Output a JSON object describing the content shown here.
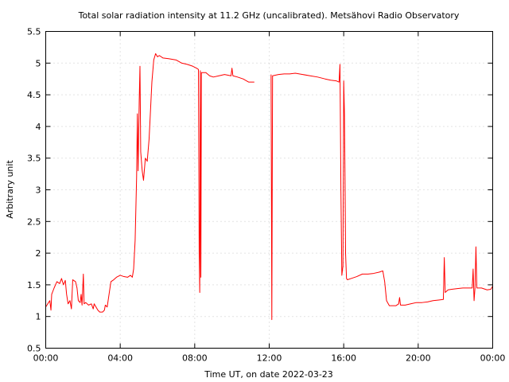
{
  "chart_data": {
    "type": "line",
    "title": "Total solar radiation intensity at 11.2 GHz (uncalibrated). Metsähovi Radio Observatory",
    "xlabel": "Time UT, on date 2022-03-23",
    "ylabel": "Arbitrary unit",
    "xlim": [
      0,
      24
    ],
    "ylim": [
      0.5,
      5.5
    ],
    "x_ticks": [
      {
        "value": 0,
        "label": "00:00"
      },
      {
        "value": 4,
        "label": "04:00"
      },
      {
        "value": 8,
        "label": "08:00"
      },
      {
        "value": 12,
        "label": "12:00"
      },
      {
        "value": 16,
        "label": "16:00"
      },
      {
        "value": 20,
        "label": "20:00"
      },
      {
        "value": 24,
        "label": "00:00"
      }
    ],
    "y_ticks": [
      {
        "value": 0.5,
        "label": "0.5"
      },
      {
        "value": 1,
        "label": "1"
      },
      {
        "value": 1.5,
        "label": "1.5"
      },
      {
        "value": 2,
        "label": "2"
      },
      {
        "value": 2.5,
        "label": "2.5"
      },
      {
        "value": 3,
        "label": "3"
      },
      {
        "value": 3.5,
        "label": "3.5"
      },
      {
        "value": 4,
        "label": "4"
      },
      {
        "value": 4.5,
        "label": "4.5"
      },
      {
        "value": 5,
        "label": "5"
      },
      {
        "value": 5.5,
        "label": "5.5"
      }
    ],
    "grid": true,
    "series_color": "#ff0000",
    "series": [
      {
        "segments": [
          [
            [
              0.0,
              1.15
            ],
            [
              0.15,
              1.22
            ],
            [
              0.22,
              1.25
            ],
            [
              0.28,
              1.1
            ],
            [
              0.32,
              1.35
            ],
            [
              0.45,
              1.45
            ],
            [
              0.6,
              1.55
            ],
            [
              0.75,
              1.52
            ],
            [
              0.85,
              1.6
            ],
            [
              0.95,
              1.5
            ],
            [
              1.05,
              1.57
            ],
            [
              1.12,
              1.35
            ],
            [
              1.2,
              1.2
            ],
            [
              1.3,
              1.25
            ],
            [
              1.38,
              1.12
            ],
            [
              1.45,
              1.58
            ],
            [
              1.6,
              1.55
            ],
            [
              1.68,
              1.45
            ],
            [
              1.75,
              1.25
            ],
            [
              1.85,
              1.22
            ],
            [
              1.9,
              1.35
            ],
            [
              1.95,
              1.18
            ],
            [
              2.02,
              1.67
            ],
            [
              2.06,
              1.2
            ],
            [
              2.15,
              1.22
            ],
            [
              2.3,
              1.18
            ],
            [
              2.45,
              1.2
            ],
            [
              2.55,
              1.12
            ],
            [
              2.6,
              1.2
            ],
            [
              2.7,
              1.15
            ],
            [
              2.8,
              1.1
            ],
            [
              2.9,
              1.07
            ],
            [
              3.05,
              1.07
            ],
            [
              3.15,
              1.1
            ],
            [
              3.2,
              1.18
            ],
            [
              3.3,
              1.15
            ],
            [
              3.4,
              1.35
            ],
            [
              3.5,
              1.55
            ],
            [
              3.65,
              1.58
            ],
            [
              3.8,
              1.62
            ],
            [
              4.0,
              1.65
            ],
            [
              4.2,
              1.63
            ],
            [
              4.4,
              1.62
            ],
            [
              4.55,
              1.65
            ],
            [
              4.65,
              1.62
            ],
            [
              4.72,
              1.75
            ],
            [
              4.8,
              2.2
            ],
            [
              4.88,
              3.2
            ],
            [
              4.92,
              4.2
            ],
            [
              4.96,
              3.3
            ],
            [
              5.02,
              4.4
            ],
            [
              5.06,
              4.95
            ],
            [
              5.1,
              3.6
            ],
            [
              5.18,
              3.3
            ],
            [
              5.25,
              3.15
            ],
            [
              5.35,
              3.5
            ],
            [
              5.45,
              3.45
            ],
            [
              5.55,
              3.8
            ],
            [
              5.7,
              4.7
            ],
            [
              5.8,
              5.05
            ],
            [
              5.9,
              5.15
            ],
            [
              6.0,
              5.1
            ],
            [
              6.1,
              5.12
            ],
            [
              6.3,
              5.08
            ],
            [
              6.6,
              5.07
            ],
            [
              7.0,
              5.05
            ],
            [
              7.3,
              5.0
            ],
            [
              7.6,
              4.98
            ],
            [
              7.9,
              4.95
            ],
            [
              8.1,
              4.92
            ],
            [
              8.2,
              4.9
            ],
            [
              8.24,
              2.0
            ],
            [
              8.27,
              1.38
            ],
            [
              8.3,
              4.88
            ],
            [
              8.33,
              1.62
            ],
            [
              8.36,
              4.85
            ],
            [
              8.6,
              4.85
            ],
            [
              8.8,
              4.8
            ],
            [
              9.0,
              4.78
            ],
            [
              9.3,
              4.8
            ],
            [
              9.6,
              4.82
            ],
            [
              9.95,
              4.8
            ],
            [
              10.0,
              4.92
            ],
            [
              10.05,
              4.8
            ],
            [
              10.3,
              4.78
            ],
            [
              10.6,
              4.75
            ],
            [
              10.9,
              4.7
            ],
            [
              11.2,
              4.7
            ]
          ],
          [
            [
              12.1,
              4.82
            ],
            [
              12.14,
              0.95
            ],
            [
              12.18,
              4.8
            ],
            [
              12.5,
              4.82
            ],
            [
              12.8,
              4.83
            ],
            [
              13.1,
              4.83
            ],
            [
              13.4,
              4.84
            ],
            [
              13.8,
              4.82
            ],
            [
              14.2,
              4.8
            ],
            [
              14.6,
              4.78
            ],
            [
              15.0,
              4.75
            ],
            [
              15.3,
              4.73
            ],
            [
              15.6,
              4.72
            ],
            [
              15.75,
              4.7
            ],
            [
              15.8,
              4.98
            ],
            [
              15.85,
              3.0
            ],
            [
              15.9,
              1.65
            ],
            [
              15.96,
              1.8
            ],
            [
              16.0,
              4.72
            ],
            [
              16.04,
              4.2
            ],
            [
              16.07,
              3.2
            ],
            [
              16.1,
              2.0
            ],
            [
              16.15,
              1.6
            ],
            [
              16.2,
              1.58
            ],
            [
              16.4,
              1.6
            ],
            [
              16.7,
              1.63
            ],
            [
              17.0,
              1.67
            ],
            [
              17.3,
              1.67
            ],
            [
              17.6,
              1.68
            ],
            [
              17.9,
              1.7
            ],
            [
              18.1,
              1.72
            ],
            [
              18.2,
              1.55
            ],
            [
              18.3,
              1.25
            ],
            [
              18.45,
              1.17
            ],
            [
              18.8,
              1.17
            ],
            [
              18.95,
              1.2
            ],
            [
              19.0,
              1.3
            ],
            [
              19.05,
              1.18
            ],
            [
              19.3,
              1.18
            ],
            [
              19.6,
              1.2
            ],
            [
              19.9,
              1.22
            ],
            [
              20.2,
              1.22
            ],
            [
              20.5,
              1.23
            ],
            [
              20.8,
              1.25
            ],
            [
              21.1,
              1.26
            ],
            [
              21.35,
              1.27
            ],
            [
              21.4,
              1.93
            ],
            [
              21.45,
              1.38
            ],
            [
              21.6,
              1.42
            ],
            [
              21.8,
              1.43
            ],
            [
              22.1,
              1.44
            ],
            [
              22.4,
              1.45
            ],
            [
              22.7,
              1.45
            ],
            [
              22.9,
              1.45
            ],
            [
              22.95,
              1.75
            ],
            [
              23.0,
              1.25
            ],
            [
              23.05,
              1.45
            ],
            [
              23.1,
              2.1
            ],
            [
              23.15,
              1.45
            ],
            [
              23.4,
              1.45
            ],
            [
              23.7,
              1.42
            ],
            [
              23.9,
              1.43
            ],
            [
              24.0,
              1.48
            ]
          ]
        ]
      }
    ]
  }
}
